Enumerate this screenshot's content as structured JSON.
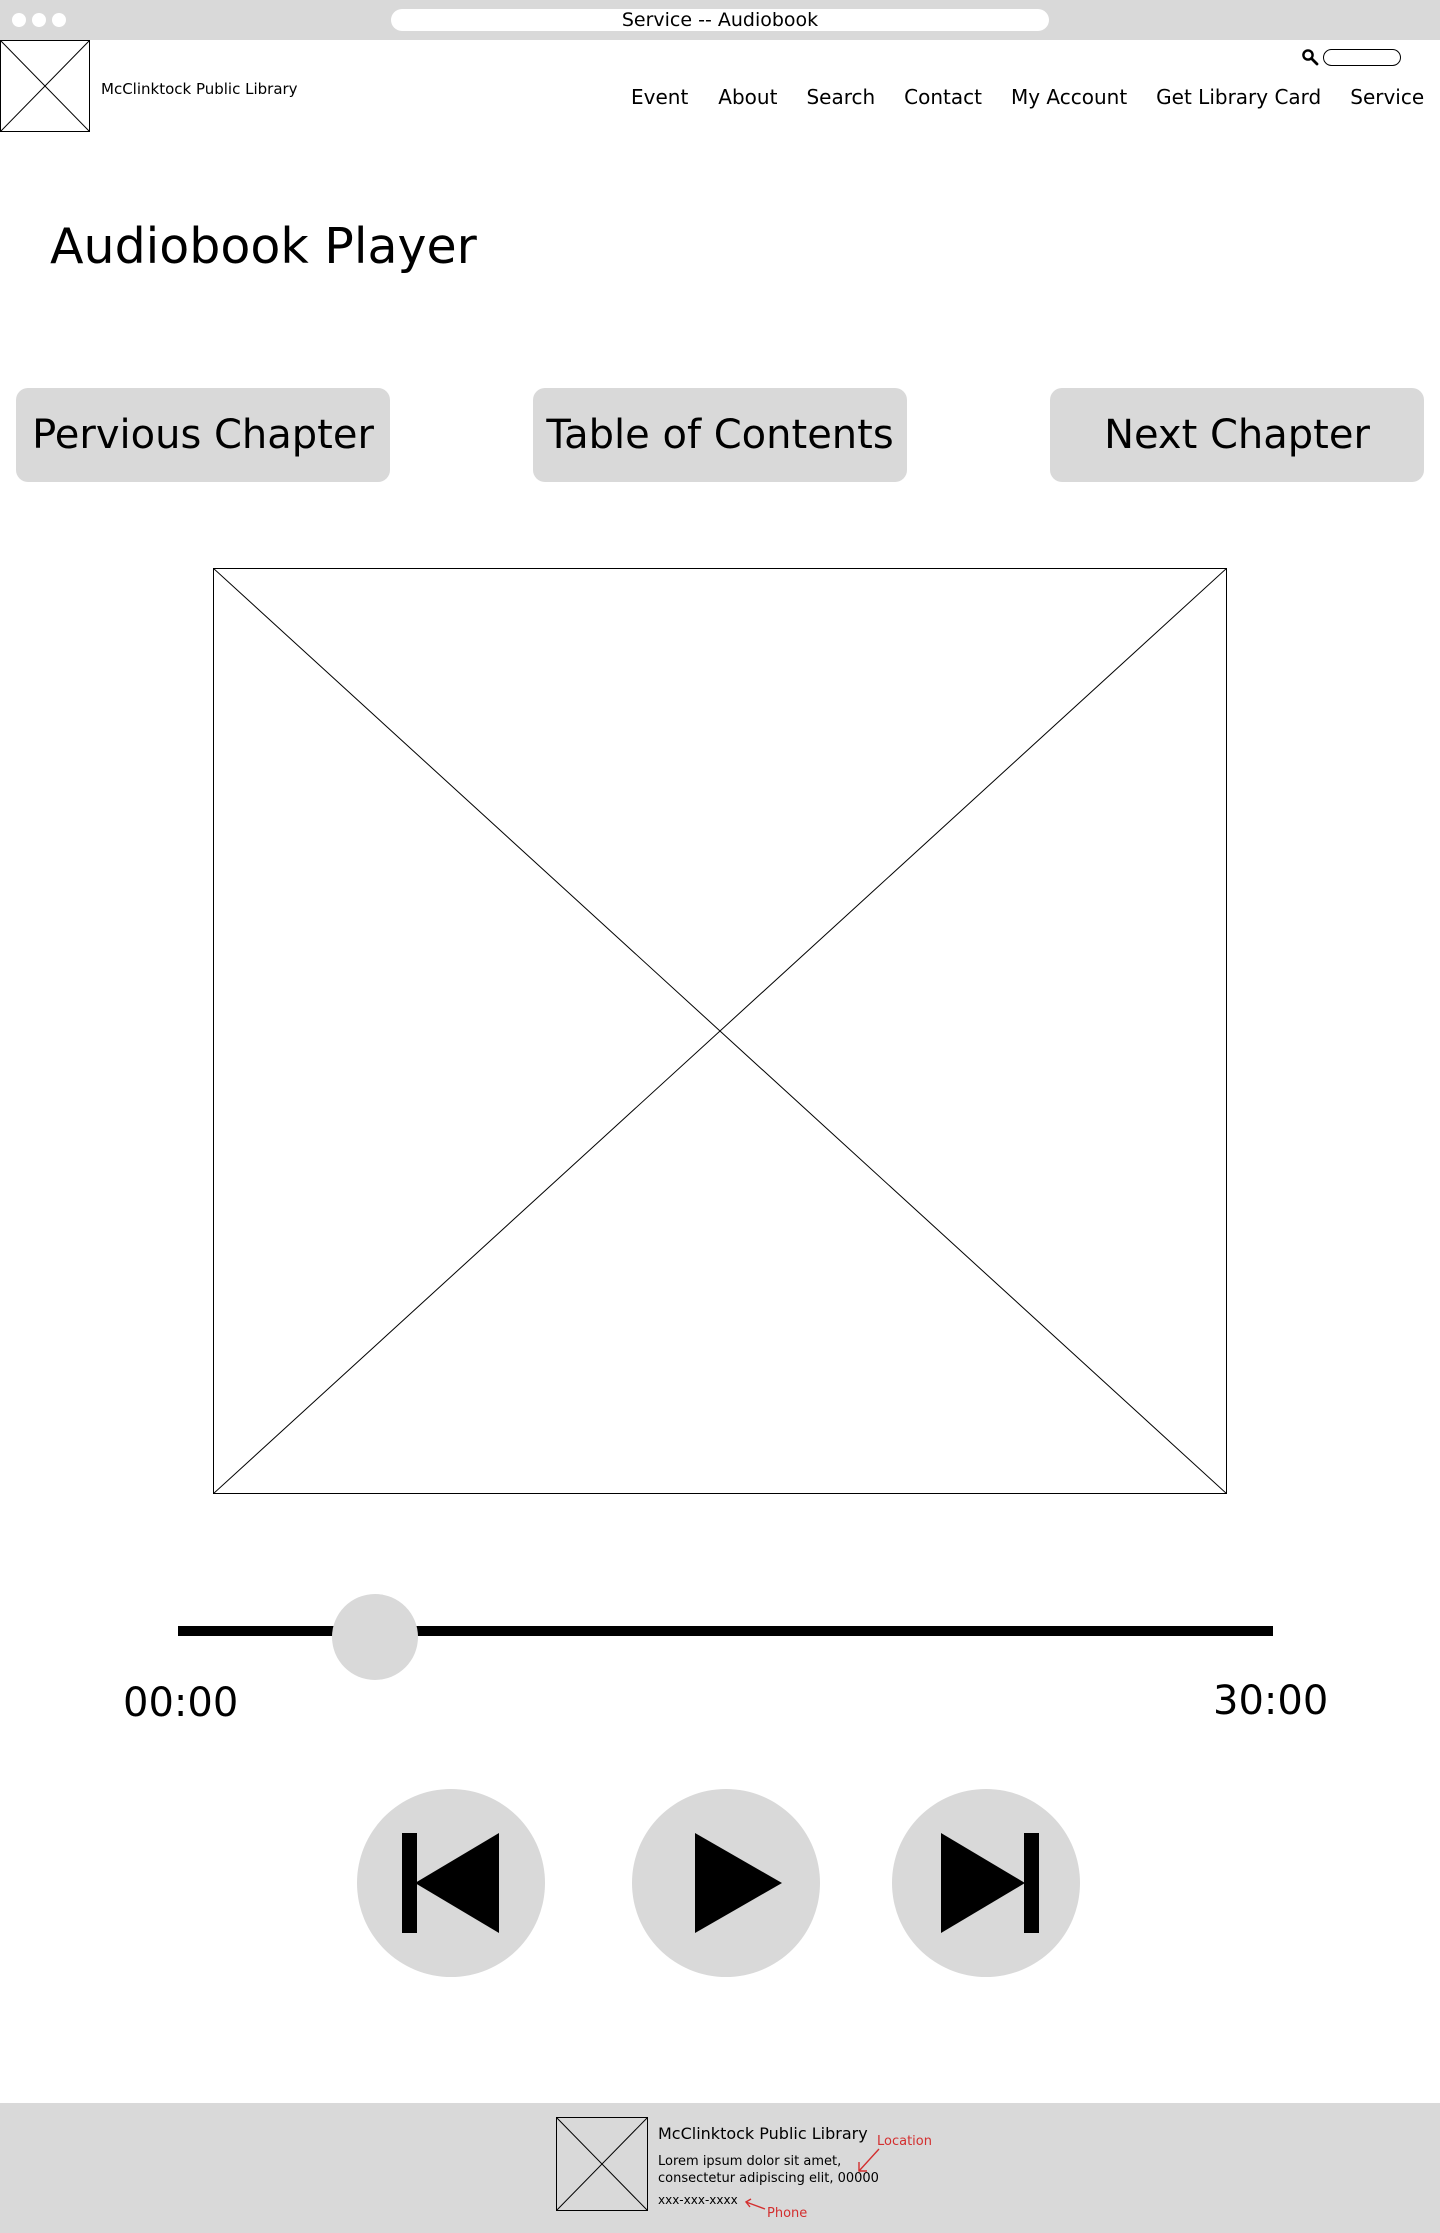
{
  "window": {
    "title": "Service -- Audiobook"
  },
  "header": {
    "site_name": "McClinktock Public Library",
    "search": {
      "icon": "search-icon",
      "placeholder": ""
    },
    "nav": [
      "Event",
      "About",
      "Search",
      "Contact",
      "My Account",
      "Get Library Card",
      "Service"
    ]
  },
  "main": {
    "page_title": "Audiobook Player",
    "chapter_buttons": {
      "previous": "Pervious Chapter",
      "toc": "Table of Contents",
      "next": "Next Chapter"
    },
    "cover_image": {
      "placeholder": true
    },
    "progress": {
      "current_time": "00:00",
      "total_time": "30:00",
      "position_fraction": 0.18
    },
    "controls": {
      "previous_icon": "skip-previous-icon",
      "play_icon": "play-icon",
      "next_icon": "skip-next-icon"
    }
  },
  "footer": {
    "site_name": "McClinktock Public Library",
    "address": "Lorem ipsum dolor sit amet, consectetur adipiscing elit, 00000",
    "phone": "xxx-xxx-xxxx",
    "annotations": {
      "location": "Location",
      "phone": "Phone"
    }
  },
  "colors": {
    "chrome": "#d9d9d9",
    "annotation": "#d32f2f",
    "text": "#000000"
  }
}
